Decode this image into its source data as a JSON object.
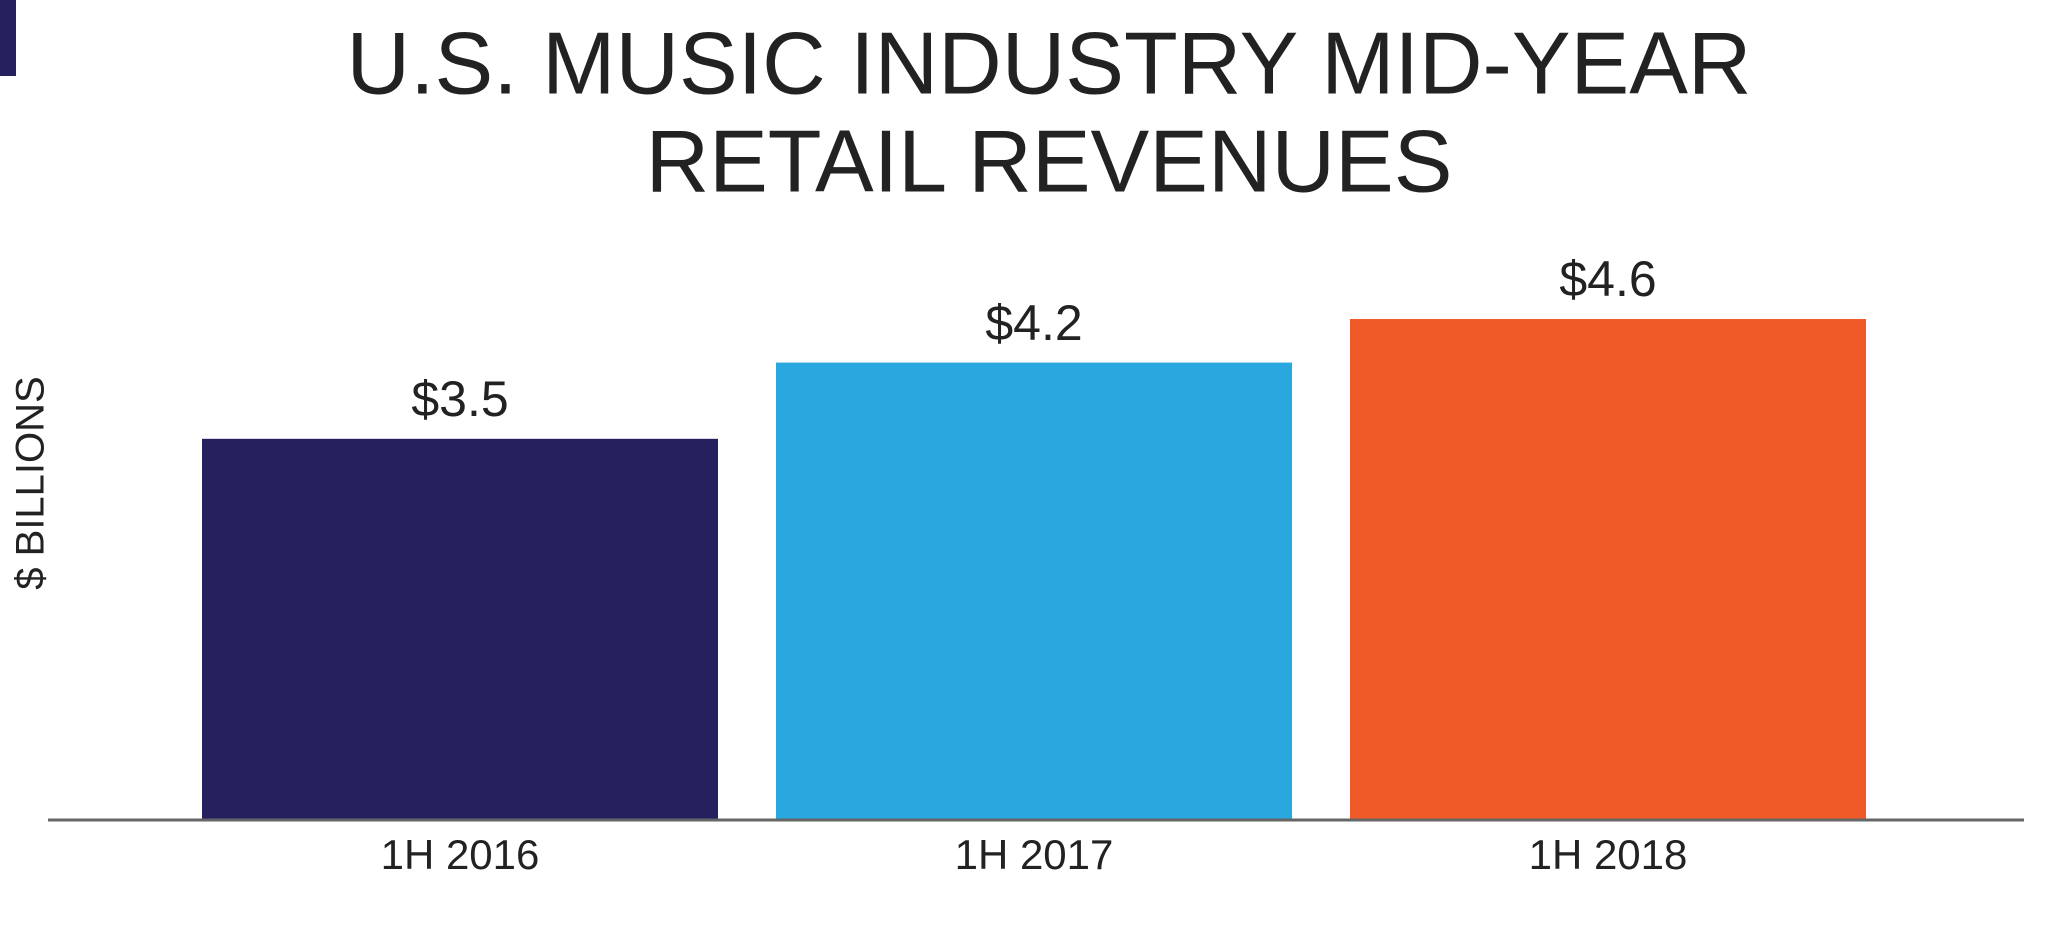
{
  "chart_data": {
    "type": "bar",
    "title": [
      "U.S. MUSIC INDUSTRY MID-YEAR",
      "RETAIL REVENUES"
    ],
    "ylabel": "$ BILLIONS",
    "categories": [
      "1H 2016",
      "1H 2017",
      "1H 2018"
    ],
    "values": [
      3.5,
      4.2,
      4.6
    ],
    "value_labels": [
      "$3.5",
      "$4.2",
      "$4.6"
    ],
    "colors": [
      "#25205e",
      "#29a8e0",
      "#f05a28"
    ],
    "ylim": [
      0,
      5.5
    ]
  }
}
